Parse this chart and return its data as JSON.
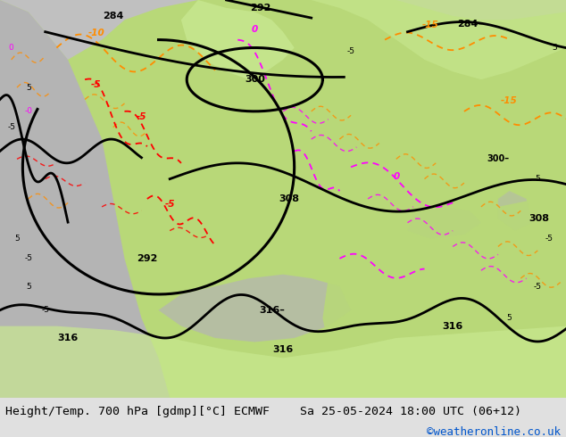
{
  "bottom_left_text": "Height/Temp. 700 hPa [gdmp][°C] ECMWF",
  "bottom_right_text": "Sa 25-05-2024 18:00 UTC (06+12)",
  "copyright_text": "©weatheronline.co.uk",
  "copyright_color": "#0055cc",
  "text_color": "#000000",
  "bottom_bar_color": "#e0e0e0",
  "font_size_labels": 9.5,
  "font_size_copyright": 9,
  "fig_width": 6.34,
  "fig_height": 4.9,
  "dpi": 100,
  "land_green": "#b8d878",
  "land_green2": "#c8e890",
  "sea_gray": "#b4b4b4",
  "sea_gray2": "#c0c0c0",
  "dark_gray": "#909090"
}
